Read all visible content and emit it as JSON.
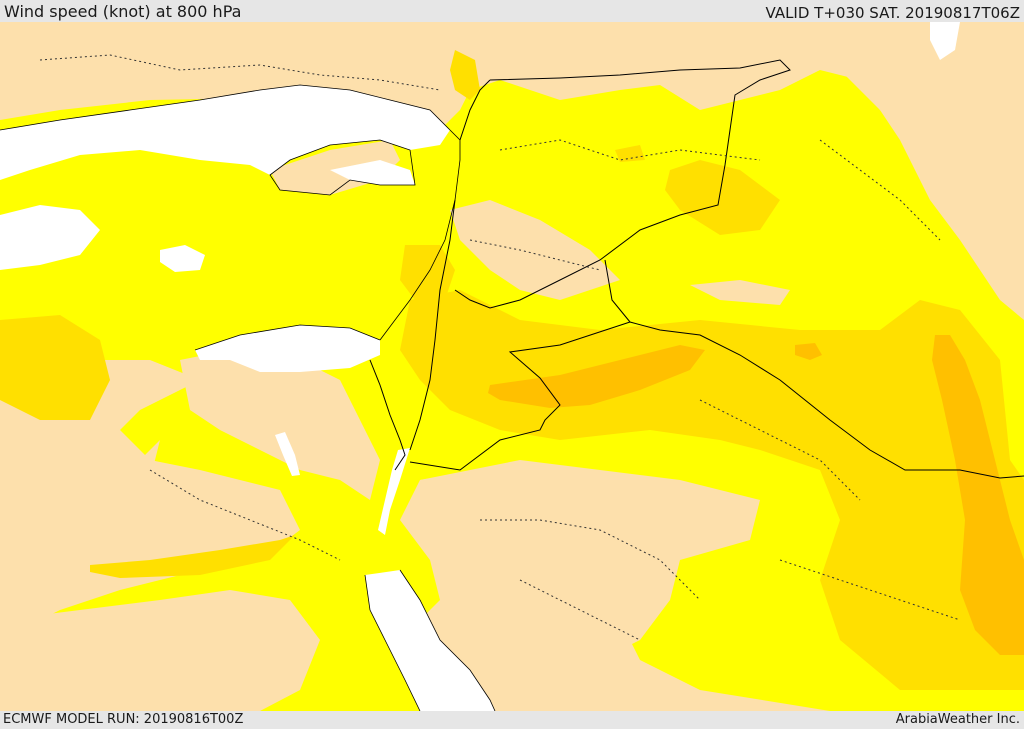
{
  "header": {
    "title": "Wind speed (knot) at 800 hPa",
    "valid": "VALID T+030 SAT. 20190817T06Z"
  },
  "footer": {
    "model_run": "ECMWF MODEL RUN: 20190816T00Z",
    "credit": "ArabiaWeather Inc."
  },
  "colors": {
    "low_wind": "#fde0ac",
    "band_1": "#ffff00",
    "band_2": "#ffe000",
    "band_3": "#ffc000",
    "water": "#ffffff",
    "border": "#000000"
  }
}
